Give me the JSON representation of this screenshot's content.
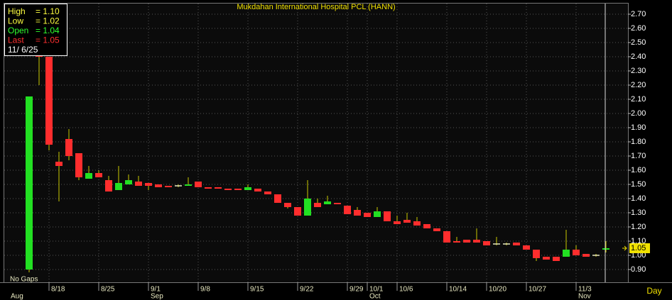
{
  "chart_data": {
    "type": "candlestick",
    "title": "Mukdahan International Hospital PCL (HANN)",
    "x_axis_label": "Day",
    "note": "No Gaps",
    "categories": [
      null,
      null,
      "8/18",
      null,
      null,
      null,
      null,
      "8/25",
      null,
      null,
      null,
      null,
      "9/1",
      null,
      null,
      null,
      null,
      "9/8",
      null,
      null,
      null,
      null,
      "9/15",
      null,
      null,
      null,
      null,
      "9/22",
      null,
      null,
      null,
      null,
      "9/29",
      null,
      "10/1",
      null,
      null,
      "10/6",
      null,
      null,
      null,
      null,
      "10/14",
      null,
      null,
      null,
      "10/20",
      null,
      null,
      null,
      "10/27",
      null,
      null,
      null,
      null,
      "11/3",
      null,
      null,
      null
    ],
    "months": [
      "Aug",
      null,
      null,
      null,
      null,
      null,
      null,
      null,
      null,
      null,
      null,
      null,
      "Sep",
      null,
      null,
      null,
      null,
      null,
      null,
      null,
      null,
      null,
      null,
      null,
      null,
      null,
      null,
      null,
      null,
      null,
      null,
      null,
      null,
      null,
      "Oct",
      null,
      null,
      null,
      null,
      null,
      null,
      null,
      null,
      null,
      null,
      null,
      null,
      null,
      null,
      null,
      null,
      null,
      null,
      null,
      null,
      "Nov",
      null,
      null,
      null
    ],
    "open": [
      0.9,
      2.45,
      2.4,
      1.66,
      1.82,
      1.72,
      1.54,
      1.58,
      1.53,
      1.46,
      1.5,
      1.52,
      1.51,
      1.5,
      1.49,
      1.49,
      1.49,
      1.52,
      1.48,
      1.48,
      1.47,
      1.47,
      1.46,
      1.47,
      1.45,
      1.43,
      1.37,
      1.34,
      1.28,
      1.37,
      1.36,
      1.37,
      1.35,
      1.32,
      1.3,
      1.27,
      1.31,
      1.24,
      1.25,
      1.24,
      1.22,
      1.19,
      1.17,
      1.1,
      1.11,
      1.11,
      1.1,
      1.08,
      1.08,
      1.09,
      1.07,
      1.04,
      0.99,
      0.99,
      0.99,
      1.04,
      1.01,
      1.0,
      1.04
    ],
    "high": [
      2.12,
      2.6,
      2.4,
      1.73,
      1.89,
      1.72,
      1.63,
      1.6,
      1.56,
      1.63,
      1.57,
      1.56,
      1.51,
      1.5,
      1.49,
      1.5,
      1.55,
      1.52,
      1.48,
      1.48,
      1.47,
      1.47,
      1.5,
      1.47,
      1.45,
      1.43,
      1.37,
      1.34,
      1.53,
      1.4,
      1.42,
      1.37,
      1.35,
      1.34,
      1.3,
      1.34,
      1.31,
      1.28,
      1.3,
      1.27,
      1.22,
      1.19,
      1.17,
      1.13,
      1.11,
      1.19,
      1.1,
      1.13,
      1.09,
      1.09,
      1.07,
      1.04,
      0.99,
      0.99,
      1.18,
      1.07,
      1.01,
      1.01,
      1.1
    ],
    "low": [
      0.88,
      2.2,
      1.74,
      1.38,
      1.67,
      1.53,
      1.54,
      1.55,
      1.45,
      1.46,
      1.5,
      1.49,
      1.46,
      1.48,
      1.48,
      1.48,
      1.49,
      1.48,
      1.47,
      1.47,
      1.46,
      1.46,
      1.46,
      1.45,
      1.43,
      1.37,
      1.33,
      1.28,
      1.28,
      1.34,
      1.36,
      1.36,
      1.29,
      1.28,
      1.27,
      1.27,
      1.24,
      1.22,
      1.23,
      1.21,
      1.19,
      1.17,
      1.09,
      1.09,
      1.09,
      1.09,
      1.07,
      1.07,
      1.07,
      1.07,
      1.04,
      0.96,
      0.97,
      0.96,
      0.99,
      1.0,
      0.99,
      0.99,
      1.02
    ],
    "close": [
      2.12,
      2.4,
      1.78,
      1.63,
      1.7,
      1.55,
      1.58,
      1.55,
      1.45,
      1.51,
      1.53,
      1.49,
      1.49,
      1.48,
      1.48,
      1.49,
      1.5,
      1.48,
      1.47,
      1.47,
      1.46,
      1.46,
      1.48,
      1.45,
      1.43,
      1.37,
      1.34,
      1.28,
      1.4,
      1.34,
      1.38,
      1.36,
      1.29,
      1.28,
      1.27,
      1.31,
      1.24,
      1.22,
      1.23,
      1.21,
      1.19,
      1.17,
      1.09,
      1.09,
      1.09,
      1.09,
      1.07,
      1.08,
      1.08,
      1.07,
      1.04,
      0.98,
      0.97,
      0.96,
      1.04,
      1.0,
      0.99,
      1.0,
      1.05
    ],
    "up_color": "#22e022",
    "down_color": "#ff2d2d",
    "wick_color": "#c8c800",
    "doji_color": "#e8e8c0",
    "ylim": [
      0.81,
      2.775
    ],
    "yticks": [
      {
        "value": 0.9,
        "label": "0.90"
      },
      {
        "value": 1.0,
        "label": "1.00"
      },
      {
        "value": 1.1,
        "label": "1.10"
      },
      {
        "value": 1.2,
        "label": "1.20"
      },
      {
        "value": 1.3,
        "label": "1.30"
      },
      {
        "value": 1.4,
        "label": "1.40"
      },
      {
        "value": 1.5,
        "label": "1.50"
      },
      {
        "value": 1.6,
        "label": "1.60"
      },
      {
        "value": 1.7,
        "label": "1.70"
      },
      {
        "value": 1.8,
        "label": "1.80"
      },
      {
        "value": 1.9,
        "label": "1.90"
      },
      {
        "value": 2.0,
        "label": "2.00"
      },
      {
        "value": 2.1,
        "label": "2.10"
      },
      {
        "value": 2.2,
        "label": "2.20"
      },
      {
        "value": 2.3,
        "label": "2.30"
      },
      {
        "value": 2.4,
        "label": "2.40"
      },
      {
        "value": 2.5,
        "label": "2.50"
      },
      {
        "value": 2.6,
        "label": "2.60"
      },
      {
        "value": 2.7,
        "label": "2.70"
      }
    ],
    "grid": true,
    "last_tag": "1.05",
    "info": {
      "rows": [
        {
          "label": "High",
          "value": "= 1.10",
          "color": "#ffff40"
        },
        {
          "label": "Low",
          "value": "= 1.02",
          "color": "#ffff40"
        },
        {
          "label": "Open",
          "value": "= 1.04",
          "color": "#30ff30"
        },
        {
          "label": "Last",
          "value": "= 1.05",
          "color": "#ff3030"
        }
      ],
      "date": "11/ 6/25"
    }
  }
}
